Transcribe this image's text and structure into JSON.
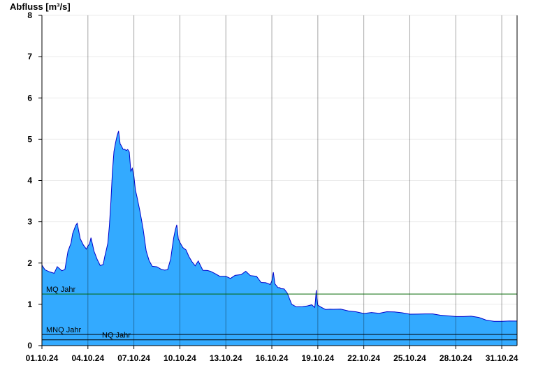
{
  "chart_data": {
    "type": "area",
    "title": "",
    "ylabel": "Abfluss [m³/s]",
    "xlabel": "",
    "ylim": [
      0,
      8
    ],
    "yticks": [
      "0",
      "1",
      "2",
      "3",
      "4",
      "5",
      "6",
      "7",
      "8"
    ],
    "xlim_days": [
      0,
      31
    ],
    "xticks": [
      "01.10.24",
      "04.10.24",
      "07.10.24",
      "10.10.24",
      "13.10.24",
      "16.10.24",
      "19.10.24",
      "22.10.24",
      "25.10.24",
      "28.10.24",
      "31.10.24"
    ],
    "grid": true,
    "colors": {
      "fill": "#33aaff",
      "line": "#0000cc",
      "mq": "#006600",
      "nq": "#000000"
    },
    "reference_lines": [
      {
        "label": "MQ Jahr",
        "value": 1.25,
        "color": "#006600"
      },
      {
        "label": "MNQ Jahr",
        "value": 0.27,
        "color": "#000000"
      },
      {
        "label": "NQ Jahr",
        "value": 0.14,
        "color": "#000000"
      }
    ],
    "series": [
      {
        "x": [
          0,
          0.2,
          0.5,
          0.8,
          1.0,
          1.3,
          1.5,
          1.7,
          1.9,
          2.0,
          2.2,
          2.3,
          2.5,
          2.7,
          2.9,
          3.0,
          3.1,
          3.2,
          3.4,
          3.6,
          3.8,
          4.0,
          4.1,
          4.2,
          4.3,
          4.4,
          4.5,
          4.6,
          4.7,
          4.8,
          4.9,
          5.0,
          5.1,
          5.2,
          5.3,
          5.4,
          5.5,
          5.6,
          5.7,
          5.8,
          5.9,
          6.0,
          6.1,
          6.2,
          6.4,
          6.6,
          6.8,
          7.0,
          7.2,
          7.5,
          7.8,
          8.0,
          8.2,
          8.4,
          8.5,
          8.6,
          8.7,
          8.8,
          8.9,
          9.0,
          9.2,
          9.4,
          9.6,
          9.8,
          10.0,
          10.2,
          10.5,
          10.8,
          11.0,
          11.3,
          11.6,
          12.0,
          12.3,
          12.6,
          13.0,
          13.3,
          13.6,
          14.0,
          14.3,
          14.6,
          14.9,
          15.0,
          15.1,
          15.2,
          15.4,
          15.5,
          15.6,
          15.8,
          16.0,
          16.3,
          16.6,
          17.0,
          17.3,
          17.6,
          17.8,
          17.85,
          17.9,
          17.95,
          18.0,
          18.2,
          18.5,
          18.8,
          19.0,
          19.5,
          20.0,
          20.5,
          21.0,
          21.5,
          22.0,
          22.5,
          23.0,
          23.5,
          24.0,
          24.5,
          25.0,
          25.5,
          26.0,
          26.5,
          27.0,
          27.5,
          28.0,
          28.5,
          29.0,
          29.5,
          30.0,
          30.5,
          31.0
        ],
        "y": [
          1.95,
          1.85,
          1.8,
          1.75,
          1.9,
          1.8,
          1.85,
          2.3,
          2.5,
          2.7,
          2.9,
          2.95,
          2.6,
          2.45,
          2.35,
          2.4,
          2.45,
          2.6,
          2.3,
          2.1,
          1.95,
          1.95,
          2.15,
          2.3,
          2.5,
          2.9,
          3.5,
          4.2,
          4.7,
          4.9,
          5.1,
          5.2,
          4.9,
          4.8,
          4.75,
          4.75,
          4.75,
          4.75,
          4.7,
          4.2,
          4.3,
          4.1,
          3.8,
          3.6,
          3.25,
          2.8,
          2.3,
          2.05,
          1.95,
          1.9,
          1.85,
          1.8,
          1.85,
          2.1,
          2.4,
          2.6,
          2.8,
          2.9,
          2.6,
          2.5,
          2.4,
          2.3,
          2.15,
          2.0,
          1.95,
          2.05,
          1.85,
          1.8,
          1.8,
          1.72,
          1.7,
          1.68,
          1.65,
          1.68,
          1.72,
          1.78,
          1.72,
          1.68,
          1.55,
          1.5,
          1.48,
          1.55,
          1.8,
          1.5,
          1.42,
          1.38,
          1.38,
          1.36,
          1.3,
          1.0,
          0.95,
          0.92,
          0.96,
          0.98,
          0.95,
          1.1,
          1.35,
          1.1,
          0.98,
          0.93,
          0.9,
          0.88,
          0.88,
          0.86,
          0.84,
          0.82,
          0.8,
          0.8,
          0.78,
          0.8,
          0.82,
          0.8,
          0.78,
          0.76,
          0.76,
          0.75,
          0.74,
          0.73,
          0.72,
          0.7,
          0.7,
          0.67,
          0.62,
          0.6,
          0.6,
          0.59,
          0.58
        ]
      }
    ]
  }
}
